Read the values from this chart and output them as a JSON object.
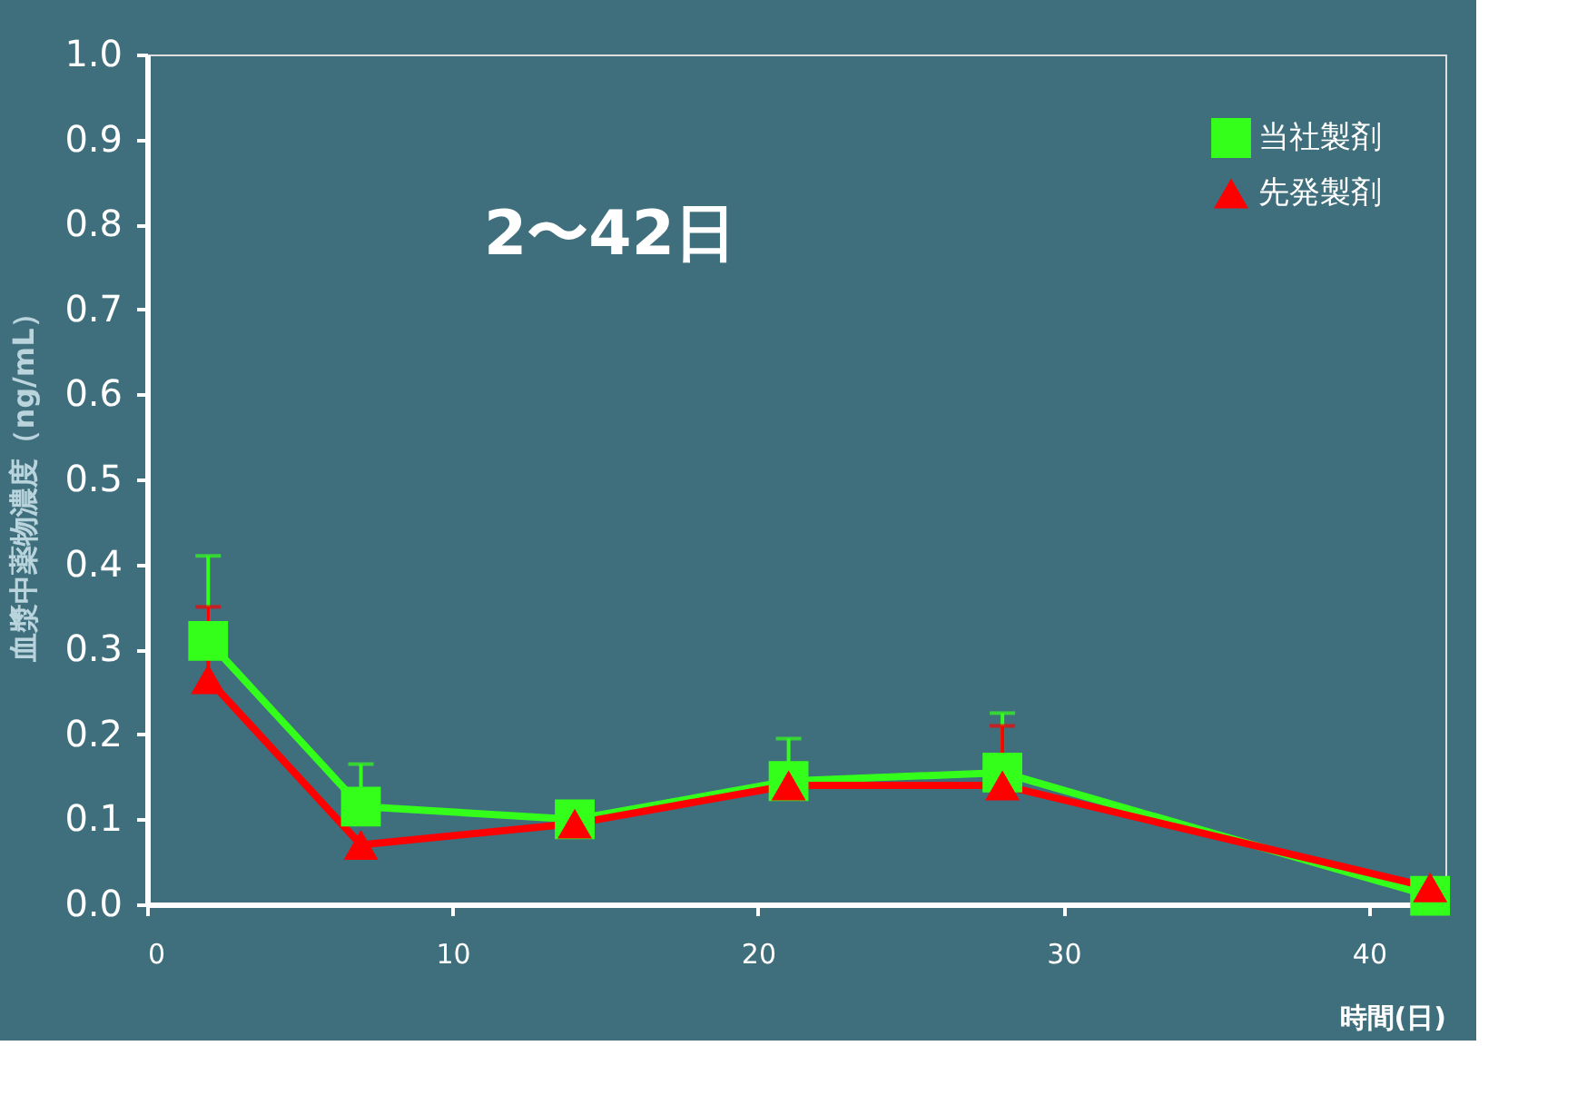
{
  "chart_data": {
    "type": "line",
    "xlabel": "時間(日)",
    "ylabel": "血漿中薬物濃度（ng/mL）",
    "annotations": [
      "2〜42日"
    ],
    "x": [
      2,
      7,
      14,
      21,
      28,
      42
    ],
    "series": [
      {
        "name": "当社製剤",
        "color": "#33ff1a",
        "marker": "square",
        "values": [
          0.31,
          0.115,
          0.1,
          0.145,
          0.155,
          0.01
        ],
        "errors": [
          [
            0.31,
            0.41
          ],
          [
            0.115,
            0.165
          ],
          null,
          [
            0.145,
            0.195
          ],
          [
            0.155,
            0.225
          ],
          null
        ]
      },
      {
        "name": "先発製剤",
        "color": "#ff0000",
        "marker": "triangle",
        "values": [
          0.265,
          0.07,
          0.095,
          0.14,
          0.14,
          0.02
        ],
        "errors": [
          [
            0.265,
            0.35
          ],
          null,
          null,
          null,
          [
            0.14,
            0.21
          ],
          null
        ]
      }
    ],
    "xlim": [
      0,
      42.5
    ],
    "xticks": [
      0,
      10,
      20,
      30,
      40
    ],
    "ylim": [
      0,
      1.0
    ],
    "yticks": [
      {
        "value": 0,
        "label": "0.0"
      },
      0.1,
      0.2,
      0.3,
      0.4,
      0.5,
      0.6,
      0.7,
      0.8,
      0.9,
      {
        "value": 1,
        "label": "1.0"
      }
    ],
    "grid": false,
    "legend": "top right",
    "line_style": "solid"
  }
}
